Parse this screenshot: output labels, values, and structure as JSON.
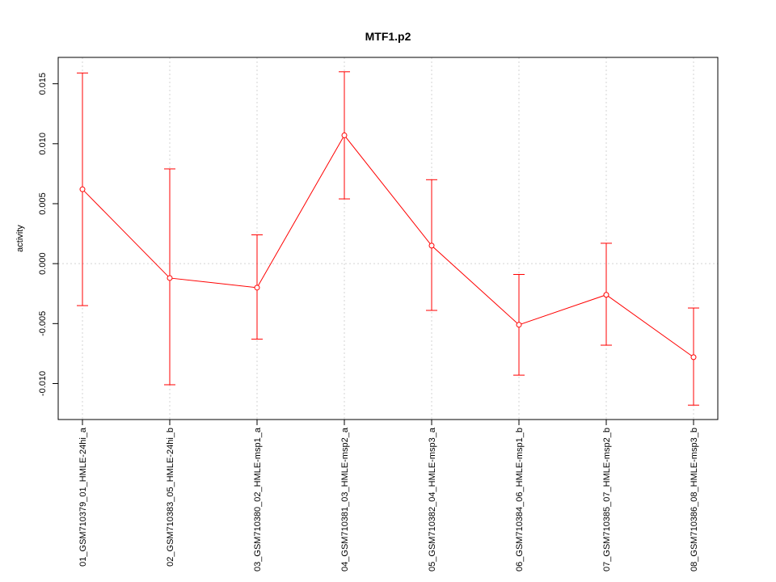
{
  "chart_data": {
    "type": "line",
    "title": "MTF1.p2",
    "xlabel": "",
    "ylabel": "activity",
    "ylim": [
      -0.013,
      0.0172
    ],
    "yticks": [
      -0.01,
      -0.005,
      0.0,
      0.005,
      0.01,
      0.015
    ],
    "ytick_labels": [
      "-0.010",
      "-0.005",
      "0.000",
      "0.005",
      "0.010",
      "0.015"
    ],
    "grid": true,
    "categories": [
      "01_GSM710379_01_HMLE-24hi_a",
      "02_GSM710383_05_HMLE-24hi_b",
      "03_GSM710380_02_HMLE-msp1_a",
      "04_GSM710381_03_HMLE-msp2_a",
      "05_GSM710382_04_HMLE-msp3_a",
      "06_GSM710384_06_HMLE-msp1_b",
      "07_GSM710385_07_HMLE-msp2_b",
      "08_GSM710386_08_HMLE-msp3_b"
    ],
    "series": [
      {
        "color": "#ff0000",
        "values": [
          0.0062,
          -0.0012,
          -0.002,
          0.0107,
          0.0015,
          -0.0051,
          -0.0026,
          -0.0078
        ],
        "upper": [
          0.0159,
          0.0079,
          0.0024,
          0.016,
          0.007,
          -0.0009,
          0.0017,
          -0.0037
        ],
        "lower": [
          -0.0035,
          -0.0101,
          -0.0063,
          0.0054,
          -0.0039,
          -0.0093,
          -0.0068,
          -0.0118
        ]
      }
    ],
    "colors": {
      "series": "#ff0000",
      "grid": "#d3d3d3",
      "axis": "#000000"
    }
  }
}
